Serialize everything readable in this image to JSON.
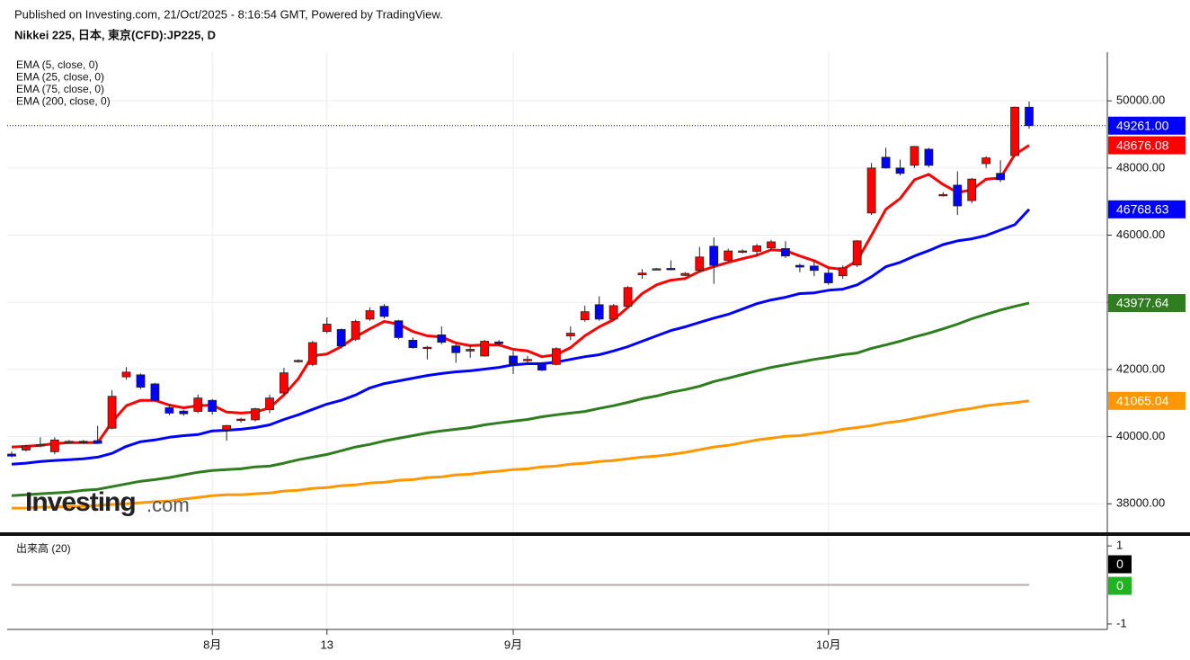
{
  "chart_data": {
    "type": "candlestick",
    "source": "Published on Investing.com, 21/Oct/2025 - 8:16:54 GMT, Powered by TradingView.",
    "title": "Nikkei 225, 日本, 東京(CFD):JP225, D",
    "watermark": "Investing",
    "watermark_suffix": ".com",
    "categories": [
      null,
      null,
      null,
      null,
      null,
      null,
      null,
      null,
      null,
      null,
      null,
      null,
      null,
      null,
      "8月",
      null,
      null,
      null,
      null,
      null,
      null,
      null,
      "13",
      null,
      null,
      null,
      null,
      null,
      null,
      null,
      null,
      null,
      null,
      null,
      null,
      "9月",
      null,
      null,
      null,
      null,
      null,
      null,
      null,
      null,
      null,
      null,
      null,
      null,
      null,
      null,
      null,
      null,
      null,
      null,
      null,
      null,
      null,
      "10月",
      null,
      null,
      null,
      null,
      null,
      null,
      null,
      null,
      null,
      null,
      null,
      null,
      null,
      null
    ],
    "open": [
      39480,
      39600,
      39720,
      39550,
      39850,
      39860,
      39880,
      40250,
      41780,
      41840,
      41570,
      40860,
      40760,
      40750,
      41080,
      40200,
      40480,
      40500,
      40800,
      41300,
      42240,
      42150,
      43130,
      43190,
      42900,
      43500,
      43880,
      43450,
      42870,
      42620,
      43030,
      42700,
      42550,
      42400,
      42820,
      42400,
      42280,
      42150,
      42150,
      43000,
      43480,
      43930,
      43500,
      43880,
      44820,
      44970,
      45010,
      44800,
      44950,
      45670,
      45250,
      45500,
      45520,
      45620,
      45600,
      45100,
      45080,
      44870,
      44790,
      45110,
      46660,
      48320,
      48000,
      48080,
      48560,
      47180,
      47490,
      47030,
      48130,
      47840,
      48370,
      49810
    ],
    "high": [
      39560,
      39760,
      39980,
      39980,
      39900,
      39900,
      40320,
      41380,
      42070,
      41880,
      41600,
      40960,
      40800,
      41250,
      41120,
      40350,
      40560,
      40860,
      41250,
      42050,
      42300,
      42850,
      43550,
      43220,
      43480,
      43850,
      43950,
      43480,
      42950,
      42700,
      43280,
      42750,
      42720,
      42880,
      42880,
      42550,
      42400,
      42220,
      42660,
      43280,
      43900,
      44180,
      43950,
      44480,
      44990,
      45020,
      45250,
      44900,
      45650,
      45930,
      45600,
      45580,
      45740,
      45860,
      45820,
      45150,
      45250,
      45000,
      45100,
      45850,
      48150,
      48600,
      48250,
      48660,
      48600,
      47280,
      47900,
      47700,
      48350,
      48230,
      49830,
      49980
    ],
    "low": [
      39380,
      39560,
      39680,
      39480,
      39800,
      39810,
      39780,
      40220,
      41700,
      41420,
      41050,
      40640,
      40620,
      40700,
      40660,
      39880,
      40420,
      40450,
      40700,
      41250,
      42200,
      42100,
      43080,
      42650,
      42850,
      43450,
      43520,
      42900,
      42620,
      42300,
      42750,
      42200,
      42350,
      42380,
      42720,
      41860,
      42200,
      41950,
      42120,
      42880,
      43420,
      43450,
      43480,
      43850,
      44700,
      44960,
      44950,
      44780,
      44880,
      44550,
      45200,
      45450,
      45360,
      45560,
      45320,
      44900,
      44780,
      44520,
      44700,
      45050,
      46600,
      47980,
      47780,
      48000,
      48020,
      47150,
      46600,
      46950,
      48000,
      47580,
      48340,
      49170
    ],
    "close": [
      39420,
      39720,
      39760,
      39900,
      39860,
      39850,
      39800,
      41200,
      41920,
      41470,
      41080,
      40700,
      40680,
      41150,
      40750,
      40330,
      40520,
      40830,
      41150,
      41900,
      42270,
      42800,
      43350,
      42700,
      43430,
      43750,
      43580,
      42950,
      42650,
      42660,
      42810,
      42500,
      42600,
      42840,
      42770,
      42170,
      42300,
      41980,
      42620,
      43080,
      43720,
      43500,
      43900,
      44440,
      44870,
      45000,
      44980,
      44860,
      45350,
      45100,
      45530,
      45530,
      45680,
      45800,
      45380,
      45050,
      44950,
      44580,
      45030,
      45830,
      48000,
      48000,
      47840,
      48640,
      48080,
      47210,
      46870,
      47670,
      48300,
      47650,
      49810,
      49261
    ],
    "up_color": "#ff0000",
    "down_color": "#0000ff",
    "close_label": "49261.00",
    "close_line_color": "#0000ff",
    "series": [
      {
        "name": "EMA (5, close, 0)",
        "color": "#ff0000",
        "price_label": "48676.08",
        "values": [
          39690,
          39710,
          39740,
          39790,
          39820,
          39820,
          39820,
          40430,
          40920,
          41080,
          41080,
          40940,
          40860,
          40920,
          40940,
          40730,
          40700,
          40730,
          40860,
          41240,
          41720,
          42410,
          42460,
          42680,
          42970,
          43210,
          43430,
          43350,
          43130,
          43000,
          42970,
          42790,
          42710,
          42730,
          42730,
          42600,
          42550,
          42380,
          42440,
          42650,
          43000,
          43270,
          43480,
          43850,
          44260,
          44520,
          44660,
          44710,
          44920,
          45060,
          45190,
          45300,
          45400,
          45560,
          45540,
          45380,
          45240,
          45030,
          44980,
          45240,
          45990,
          46770,
          47090,
          47650,
          47810,
          47510,
          47270,
          47350,
          47670,
          47700,
          48400,
          48676.08
        ]
      },
      {
        "name": "EMA (25, close, 0)",
        "color": "#0000ff",
        "price_label": "46768.63",
        "values": [
          39180,
          39210,
          39260,
          39290,
          39310,
          39340,
          39390,
          39500,
          39710,
          39850,
          39900,
          39980,
          40030,
          40060,
          40170,
          40190,
          40220,
          40270,
          40350,
          40510,
          40650,
          40810,
          40970,
          41080,
          41240,
          41450,
          41580,
          41660,
          41740,
          41820,
          41880,
          41930,
          41960,
          42010,
          42060,
          42140,
          42170,
          42170,
          42220,
          42300,
          42380,
          42440,
          42550,
          42680,
          42840,
          43000,
          43160,
          43270,
          43400,
          43530,
          43640,
          43800,
          43960,
          44070,
          44150,
          44260,
          44280,
          44360,
          44390,
          44520,
          44760,
          45060,
          45190,
          45380,
          45540,
          45720,
          45830,
          45890,
          45990,
          46150,
          46310,
          46768.63
        ]
      },
      {
        "name": "EMA (75, close, 0)",
        "color": "#2e7d1e",
        "price_label": "43977.64",
        "values": [
          38240,
          38270,
          38300,
          38320,
          38350,
          38400,
          38430,
          38510,
          38590,
          38670,
          38720,
          38780,
          38860,
          38940,
          38990,
          39020,
          39040,
          39100,
          39120,
          39210,
          39310,
          39390,
          39470,
          39580,
          39690,
          39770,
          39870,
          39950,
          40030,
          40110,
          40170,
          40220,
          40270,
          40350,
          40410,
          40460,
          40510,
          40590,
          40650,
          40700,
          40750,
          40840,
          40920,
          41020,
          41130,
          41210,
          41320,
          41400,
          41500,
          41640,
          41740,
          41850,
          41960,
          42060,
          42140,
          42220,
          42300,
          42360,
          42440,
          42490,
          42630,
          42730,
          42840,
          42970,
          43080,
          43210,
          43350,
          43510,
          43640,
          43770,
          43880,
          43977.64
        ]
      },
      {
        "name": "EMA (200, close, 0)",
        "color": "#ff9800",
        "price_label": "41065.04",
        "values": [
          37870,
          37870,
          37900,
          37900,
          37920,
          37920,
          37950,
          37980,
          38000,
          38030,
          38060,
          38080,
          38140,
          38190,
          38240,
          38270,
          38270,
          38300,
          38320,
          38380,
          38400,
          38460,
          38480,
          38540,
          38560,
          38620,
          38640,
          38700,
          38720,
          38780,
          38800,
          38860,
          38880,
          38940,
          38970,
          39020,
          39040,
          39100,
          39120,
          39180,
          39210,
          39260,
          39290,
          39340,
          39390,
          39420,
          39470,
          39530,
          39610,
          39690,
          39740,
          39820,
          39900,
          39950,
          40010,
          40030,
          40090,
          40140,
          40220,
          40270,
          40330,
          40410,
          40460,
          40540,
          40620,
          40700,
          40780,
          40840,
          40920,
          40970,
          41010,
          41065.04
        ]
      }
    ],
    "ylim": [
      37150,
      51450
    ],
    "yticks": [
      {
        "value": 38000,
        "label": "38000.00"
      },
      {
        "value": 40000,
        "label": "40000.00"
      },
      {
        "value": 42000,
        "label": "42000.00"
      },
      {
        "value": 44000,
        "label": "44000.00"
      },
      {
        "value": 46000,
        "label": "46000.00"
      },
      {
        "value": 48000,
        "label": "48000.00"
      },
      {
        "value": 50000,
        "label": "50000.00"
      }
    ],
    "grid": true,
    "volume": {
      "title": "出来高 (20)",
      "ylim": [
        -1.14,
        1.21
      ],
      "yticks": [
        1,
        -1
      ],
      "values": [
        0,
        0,
        0,
        0,
        0,
        0,
        0,
        0,
        0,
        0,
        0,
        0,
        0,
        0,
        0,
        0,
        0,
        0,
        0,
        0,
        0,
        0,
        0,
        0,
        0,
        0,
        0,
        0,
        0,
        0,
        0,
        0,
        0,
        0,
        0,
        0,
        0,
        0,
        0,
        0,
        0,
        0,
        0,
        0,
        0,
        0,
        0,
        0,
        0,
        0,
        0,
        0,
        0,
        0,
        0,
        0,
        0,
        0,
        0,
        0,
        0,
        0,
        0,
        0,
        0,
        0,
        0,
        0,
        0,
        0,
        0,
        0
      ],
      "tags": [
        {
          "value": 0,
          "color": "#000000"
        },
        {
          "value": 0,
          "color": "#22b222"
        }
      ]
    }
  }
}
